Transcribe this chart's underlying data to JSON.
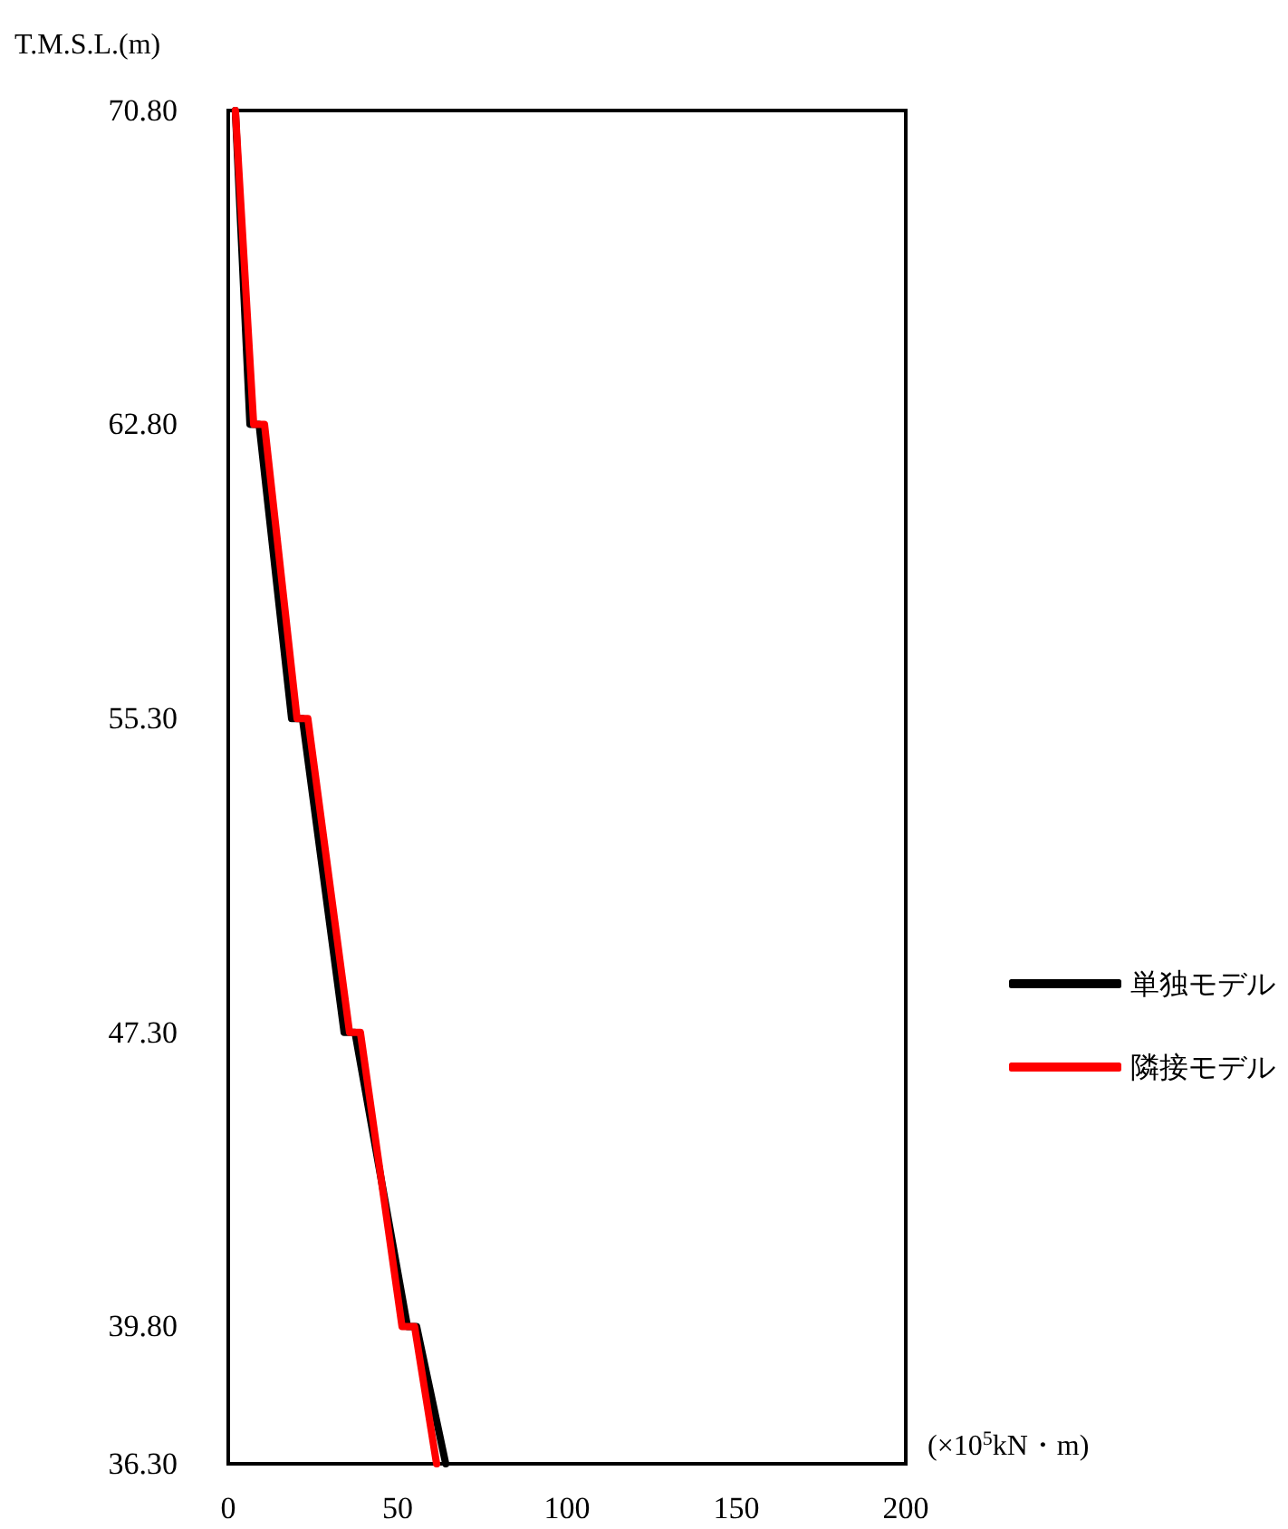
{
  "chart_data": {
    "type": "line",
    "ylabel": "T.M.S.L.(m)",
    "xlabel": "(×10$^{5}$kN・m)",
    "xlim": [
      0,
      200
    ],
    "xticks": [
      0,
      50,
      100,
      150,
      200
    ],
    "ylim": [
      36.3,
      70.8
    ],
    "yticks": [
      {
        "value": 36.3,
        "label": "36.30"
      },
      {
        "value": 39.8,
        "label": "39.80"
      },
      {
        "value": 47.3,
        "label": "47.30"
      },
      {
        "value": 55.3,
        "label": "55.30"
      },
      {
        "value": 62.8,
        "label": "62.80"
      },
      {
        "value": 70.8,
        "label": "70.80"
      }
    ],
    "grid": false,
    "legend": "right",
    "marker": "none",
    "line_style": "solid",
    "series": [
      {
        "name": "単独モデル",
        "color": "#000000",
        "x": [
          2.1,
          6.4,
          9.1,
          18.7,
          21.9,
          34.2,
          37.4,
          52.9,
          55.6,
          64.2
        ],
        "values": [
          70.8,
          62.8,
          62.8,
          55.3,
          55.3,
          47.3,
          47.3,
          39.8,
          39.8,
          36.3
        ]
      },
      {
        "name": "隣接モデル",
        "color": "#ff0000",
        "x": [
          2.1,
          7.5,
          10.7,
          20.3,
          23.5,
          35.8,
          39,
          51.3,
          55,
          61.5
        ],
        "values": [
          70.8,
          62.8,
          62.8,
          55.3,
          55.3,
          47.3,
          47.3,
          39.8,
          39.8,
          36.3
        ]
      }
    ]
  }
}
